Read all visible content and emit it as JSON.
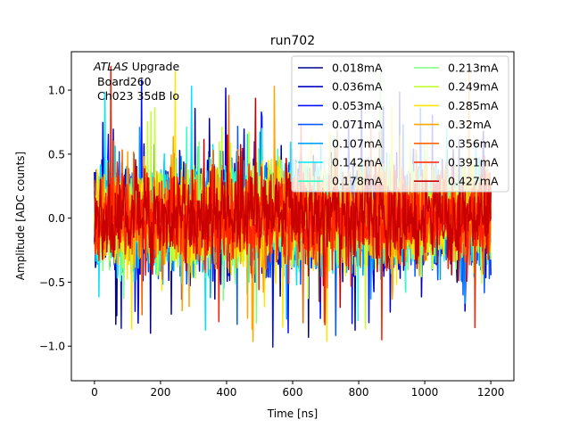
{
  "chart_data": {
    "type": "line",
    "title": "run702",
    "xlabel": "Time [ns]",
    "ylabel": "Amplitude [ADC counts]",
    "xlim": [
      -70,
      1270
    ],
    "ylim": [
      -1.27,
      1.3
    ],
    "xticks": [
      0,
      200,
      400,
      600,
      800,
      1000,
      1200
    ],
    "xtick_labels": [
      "0",
      "200",
      "400",
      "600",
      "800",
      "1000",
      "1200"
    ],
    "yticks": [
      -1.0,
      -0.5,
      0.0,
      0.5,
      1.0
    ],
    "ytick_labels": [
      "−1.0",
      "−0.5",
      "0.0",
      "0.5",
      "1.0"
    ],
    "grid": false,
    "legend_position": "top-right",
    "legend_columns": 2,
    "annotation": {
      "italic": "ATLAS",
      "normal": " Upgrade",
      "line2": "Board260",
      "line3": "Ch023 35dB lo"
    },
    "sample_spacing_ns": 1.5,
    "series": [
      {
        "name": "0.018mA",
        "color": "#00008f",
        "spread": 0.33,
        "seed": 11
      },
      {
        "name": "0.036mA",
        "color": "#0000c4",
        "spread": 0.33,
        "seed": 23
      },
      {
        "name": "0.053mA",
        "color": "#0010ff",
        "spread": 0.33,
        "seed": 37
      },
      {
        "name": "0.071mA",
        "color": "#0058ff",
        "spread": 0.33,
        "seed": 41
      },
      {
        "name": "0.107mA",
        "color": "#00a0ff",
        "spread": 0.33,
        "seed": 53
      },
      {
        "name": "0.142mA",
        "color": "#00e4ff",
        "spread": 0.33,
        "seed": 67
      },
      {
        "name": "0.178mA",
        "color": "#30ffc8",
        "spread": 0.33,
        "seed": 71
      },
      {
        "name": "0.213mA",
        "color": "#7cff7c",
        "spread": 0.33,
        "seed": 83
      },
      {
        "name": "0.249mA",
        "color": "#c4ff34",
        "spread": 0.33,
        "seed": 97
      },
      {
        "name": "0.285mA",
        "color": "#ffe600",
        "spread": 0.33,
        "seed": 101
      },
      {
        "name": "0.32mA",
        "color": "#ffa600",
        "spread": 0.33,
        "seed": 113
      },
      {
        "name": "0.356mA",
        "color": "#ff6400",
        "spread": 0.32,
        "seed": 127
      },
      {
        "name": "0.391mA",
        "color": "#ff2000",
        "spread": 0.3,
        "seed": 131
      },
      {
        "name": "0.427mA",
        "color": "#c80000",
        "spread": 0.28,
        "seed": 149
      }
    ]
  }
}
